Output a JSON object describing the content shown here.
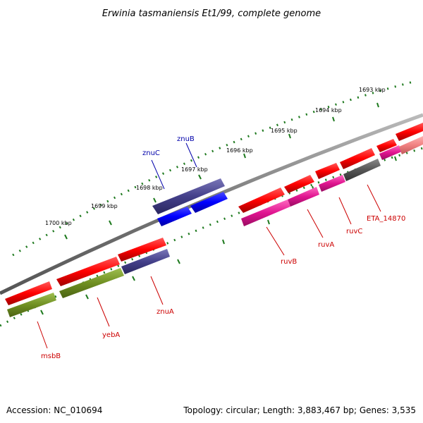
{
  "title": "Erwinia tasmaniensis Et1/99, complete genome",
  "footer": {
    "accession": "Accession: NC_010694",
    "summary": "Topology: circular; Length: 3,883,467 bp; Genes: 3,535"
  },
  "colors": {
    "cds": "#ff0000",
    "cds_forward": "#0000ff",
    "transporter": "#44408a",
    "green": "#6f8f22",
    "magenta": "#e01490",
    "grey": "#555555",
    "pink": "#f08080",
    "backbone": "#777777",
    "ticks": "#1f7a1f",
    "label_blue": "#0000aa",
    "label_red": "#cc0000"
  },
  "ticks": [
    "1693 kbp",
    "1694 kbp",
    "1695 kbp",
    "1696 kbp",
    "1697 kbp",
    "1698 kbp",
    "1699 kbp",
    "1700 kbp"
  ],
  "labels": [
    "znuB",
    "znuC",
    "ruvB",
    "ruvA",
    "ruvC",
    "ETA_14870",
    "msbB",
    "yebA",
    "znuA"
  ]
}
